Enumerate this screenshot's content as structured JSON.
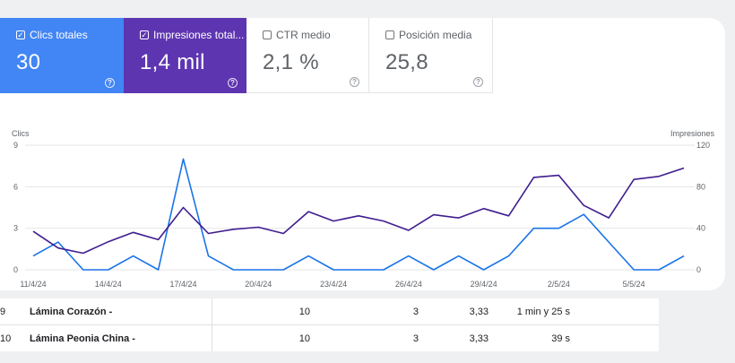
{
  "metrics": [
    {
      "label": "Clics totales",
      "value": "30",
      "checked": true,
      "color": "#4285f4"
    },
    {
      "label": "Impresiones total...",
      "value": "1,4 mil",
      "checked": true,
      "color": "#5e35b1"
    },
    {
      "label": "CTR medio",
      "value": "2,1 %",
      "checked": false,
      "color": "#ffffff"
    },
    {
      "label": "Posición media",
      "value": "25,8",
      "checked": false,
      "color": "#ffffff"
    }
  ],
  "help_glyph": "?",
  "check_glyph": "✓",
  "chart_data": {
    "type": "line",
    "left_axis_label": "Clics",
    "right_axis_label": "Impresiones",
    "left_ylim": [
      0,
      9
    ],
    "right_ylim": [
      0,
      120
    ],
    "left_ticks": [
      "9",
      "6",
      "3",
      "0"
    ],
    "right_ticks": [
      "120",
      "80",
      "40",
      "0"
    ],
    "x_tick_labels": [
      "11/4/24",
      "14/4/24",
      "17/4/24",
      "20/4/24",
      "23/4/24",
      "26/4/24",
      "29/4/24",
      "2/5/24",
      "5/5/24"
    ],
    "x": [
      "11/4/24",
      "12/4/24",
      "13/4/24",
      "14/4/24",
      "15/4/24",
      "16/4/24",
      "17/4/24",
      "18/4/24",
      "19/4/24",
      "20/4/24",
      "21/4/24",
      "22/4/24",
      "23/4/24",
      "24/4/24",
      "25/4/24",
      "26/4/24",
      "27/4/24",
      "28/4/24",
      "29/4/24",
      "30/4/24",
      "1/5/24",
      "2/5/24",
      "3/5/24",
      "4/5/24",
      "5/5/24",
      "6/5/24",
      "7/5/24"
    ],
    "series": [
      {
        "name": "Clics",
        "axis": "left",
        "color": "#1a73e8",
        "values": [
          1,
          2,
          0,
          0,
          1,
          0,
          8,
          1,
          0,
          0,
          0,
          1,
          0,
          0,
          0,
          1,
          0,
          1,
          0,
          1,
          3,
          3,
          4,
          2,
          0,
          0,
          1
        ]
      },
      {
        "name": "Impresiones",
        "axis": "right",
        "color": "#3f1d8f",
        "values": [
          37,
          21,
          16,
          27,
          36,
          29,
          60,
          35,
          39,
          41,
          35,
          56,
          47,
          52,
          47,
          38,
          53,
          50,
          59,
          52,
          89,
          91,
          62,
          50,
          87,
          90,
          98
        ]
      }
    ],
    "grid": true
  },
  "table": {
    "rows": [
      {
        "index": "9",
        "name": "Lámina Corazón -",
        "clicks": "10",
        "impressions": "3",
        "ctr": "3,33",
        "time": "1 min y 25 s"
      },
      {
        "index": "10",
        "name": "Lámina Peonia China -",
        "clicks": "10",
        "impressions": "3",
        "ctr": "3,33",
        "time": "39 s"
      }
    ]
  }
}
